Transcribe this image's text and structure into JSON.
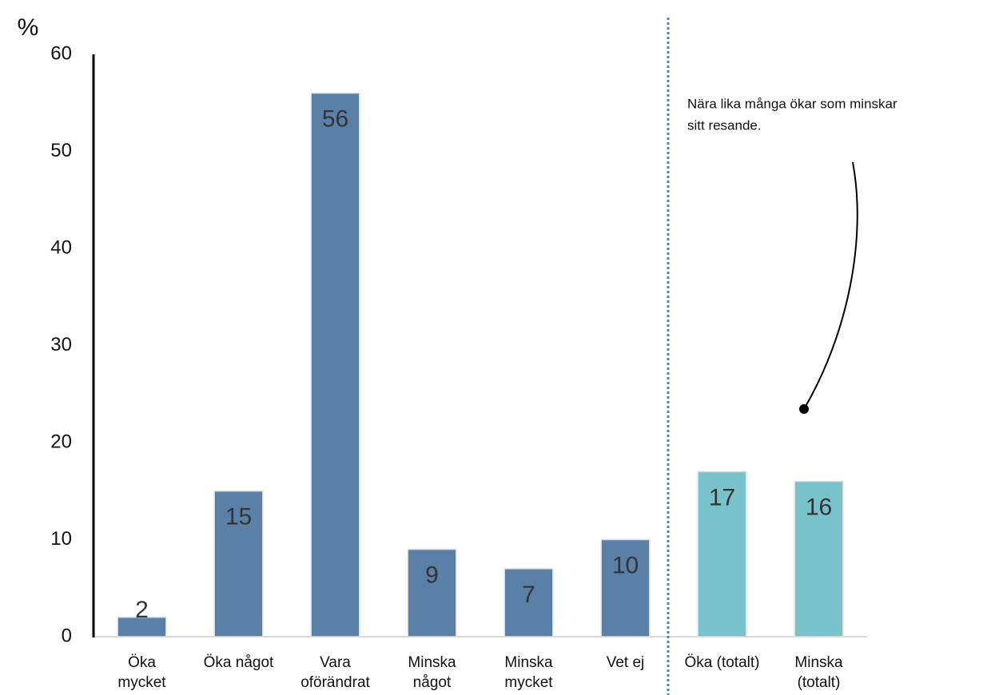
{
  "chart_data": {
    "type": "bar",
    "y_label": "%",
    "categories": [
      [
        "Öka",
        "mycket"
      ],
      [
        "Öka något"
      ],
      [
        "Vara",
        "oförändrat"
      ],
      [
        "Minska",
        "något"
      ],
      [
        "Minska",
        "mycket"
      ],
      [
        "Vet ej"
      ],
      [
        "Öka (totalt)"
      ],
      [
        "Minska",
        "(totalt)"
      ]
    ],
    "values": [
      2,
      15,
      56,
      9,
      7,
      10,
      17,
      16
    ],
    "colors": [
      "#5b80a8",
      "#5b80a8",
      "#5b80a8",
      "#5b80a8",
      "#5b80a8",
      "#5b80a8",
      "#77c2cb",
      "#77c2cb"
    ],
    "ylim": [
      0,
      60
    ],
    "yticks": [
      0,
      10,
      20,
      30,
      40,
      50,
      60
    ],
    "grid": false,
    "annotation": [
      "Nära lika många ökar som minskar",
      "sitt resande."
    ]
  }
}
